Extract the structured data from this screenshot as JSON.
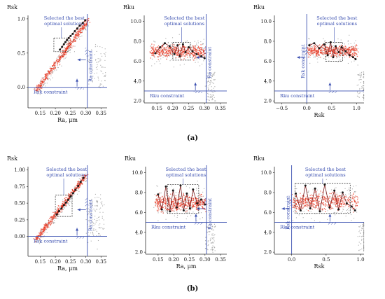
{
  "colors": {
    "all_points": "#8a8a8a",
    "pareto_points": "#e8331c",
    "optimal_points": "#1a1a1a",
    "optimal_line": "#7a1a1a",
    "constraint": "#3a4fb0",
    "annotation": "#3a4fb0",
    "text": "#111111",
    "box": "#222222"
  },
  "rows": [
    {
      "caption": "(a)"
    },
    {
      "caption": "(b)"
    }
  ],
  "chart_data": [
    {
      "row": "a",
      "panel": 1,
      "type": "scatter",
      "ylabel": "Rsk",
      "xlabel": "Ra, μm",
      "xlim": [
        0.11,
        0.37
      ],
      "ylim": [
        -0.3,
        1.05
      ],
      "xticks": [
        "0.15",
        "0.20",
        "0.25",
        "0.30",
        "0.35"
      ],
      "xtick_vals": [
        0.15,
        0.2,
        0.25,
        0.3,
        0.35
      ],
      "yticks": [
        "0.0",
        "0.5",
        "1.0"
      ],
      "ytick_vals": [
        0.0,
        0.5,
        1.0
      ],
      "hline": {
        "value": 0.0,
        "label": "Rsk constraint"
      },
      "vline": {
        "value": 0.305,
        "label": "Ra constraint"
      },
      "box": {
        "x": [
          0.195,
          0.245
        ],
        "y": [
          0.52,
          0.72
        ],
        "label": [
          "Selected the best",
          "optimal solutions"
        ]
      },
      "shape": "band",
      "band": {
        "x0": 0.135,
        "x1": 0.305,
        "y0": -0.02,
        "y1": 1.0
      },
      "optimal": [
        [
          0.215,
          0.55
        ],
        [
          0.222,
          0.59
        ],
        [
          0.228,
          0.63
        ],
        [
          0.233,
          0.66
        ],
        [
          0.238,
          0.69
        ],
        [
          0.244,
          0.72
        ],
        [
          0.25,
          0.75
        ],
        [
          0.257,
          0.78
        ],
        [
          0.264,
          0.82
        ],
        [
          0.272,
          0.86
        ],
        [
          0.28,
          0.9
        ],
        [
          0.29,
          0.94
        ],
        [
          0.298,
          0.98
        ]
      ]
    },
    {
      "row": "a",
      "panel": 2,
      "type": "scatter",
      "ylabel": "Rku",
      "xlabel": "",
      "xlim": [
        0.11,
        0.37
      ],
      "ylim": [
        1.8,
        10.6
      ],
      "xticks": [
        "0.15",
        "0.20",
        "0.25",
        "0.30",
        "0.35"
      ],
      "xtick_vals": [
        0.15,
        0.2,
        0.25,
        0.3,
        0.35
      ],
      "yticks": [
        "2.0",
        "4.0",
        "6.0",
        "8.0",
        "10.0"
      ],
      "ytick_vals": [
        2,
        4,
        6,
        8,
        10
      ],
      "hline": {
        "value": 3.0,
        "label": "Rku constraint"
      },
      "vline": {
        "value": 0.305,
        "label": "Ra constraint"
      },
      "box": {
        "x": [
          0.2,
          0.255
        ],
        "y": [
          6.1,
          7.9
        ],
        "label": [
          "Selected the best",
          "optimal solutions"
        ]
      },
      "shape": "cloud",
      "cloud": {
        "x0": 0.13,
        "x1": 0.3,
        "ymid": 7.0,
        "yspread": 1.3
      },
      "optimal": [
        [
          0.145,
          6.8
        ],
        [
          0.16,
          7.4
        ],
        [
          0.175,
          7.8
        ],
        [
          0.19,
          7.5
        ],
        [
          0.205,
          6.7
        ],
        [
          0.215,
          7.6
        ],
        [
          0.222,
          6.5
        ],
        [
          0.232,
          7.7
        ],
        [
          0.24,
          6.9
        ],
        [
          0.25,
          7.4
        ],
        [
          0.262,
          7.0
        ],
        [
          0.275,
          6.7
        ],
        [
          0.29,
          6.5
        ],
        [
          0.3,
          6.3
        ]
      ]
    },
    {
      "row": "a",
      "panel": 3,
      "type": "scatter",
      "ylabel": "Rku",
      "xlabel": "Rsk",
      "xlim": [
        -0.65,
        1.15
      ],
      "ylim": [
        1.8,
        10.6
      ],
      "xticks": [
        "−0.5",
        "0.0",
        "0.5",
        "1.0"
      ],
      "xtick_vals": [
        -0.5,
        0.0,
        0.5,
        1.0
      ],
      "yticks": [
        "2.0",
        "4.0",
        "6.0",
        "8.0",
        "10.0"
      ],
      "ytick_vals": [
        2,
        4,
        6,
        8,
        10
      ],
      "hline": {
        "value": 3.0,
        "label": "Rku constraint"
      },
      "vline": {
        "value": 0.0,
        "label": "Rsk constraint"
      },
      "box": {
        "x": [
          0.38,
          0.72
        ],
        "y": [
          6.0,
          7.9
        ],
        "label": [
          "Selected the best",
          "optimal solutions"
        ]
      },
      "shape": "cloud",
      "cloud": {
        "x0": 0.0,
        "x1": 1.0,
        "ymid": 7.1,
        "yspread": 1.2
      },
      "optimal": [
        [
          0.05,
          7.6
        ],
        [
          0.15,
          7.8
        ],
        [
          0.25,
          7.3
        ],
        [
          0.35,
          7.7
        ],
        [
          0.42,
          6.6
        ],
        [
          0.48,
          7.9
        ],
        [
          0.53,
          6.4
        ],
        [
          0.58,
          7.5
        ],
        [
          0.64,
          6.9
        ],
        [
          0.7,
          7.4
        ],
        [
          0.78,
          7.0
        ],
        [
          0.86,
          6.6
        ],
        [
          0.93,
          6.4
        ],
        [
          0.98,
          6.2
        ]
      ]
    },
    {
      "row": "b",
      "panel": 1,
      "type": "scatter",
      "ylabel": "Rsk",
      "xlabel": "Ra, μm",
      "xlim": [
        0.11,
        0.37
      ],
      "ylim": [
        -0.3,
        1.05
      ],
      "xticks": [
        "0.15",
        "0.20",
        "0.25",
        "0.30",
        "0.35"
      ],
      "xtick_vals": [
        0.15,
        0.2,
        0.25,
        0.3,
        0.35
      ],
      "yticks": [
        "0.00",
        "0.25",
        "0.50",
        "0.75",
        "1.00"
      ],
      "ytick_vals": [
        0.0,
        0.25,
        0.5,
        0.75,
        1.0
      ],
      "hline": {
        "value": 0.0,
        "label": "Rsk constraint"
      },
      "vline": {
        "value": 0.305,
        "label": "Ra constraint"
      },
      "box": {
        "x": [
          0.2,
          0.255
        ],
        "y": [
          0.3,
          0.62
        ],
        "label": [
          "Selected the best",
          "optimal solutions"
        ]
      },
      "shape": "band",
      "band": {
        "x0": 0.135,
        "x1": 0.3,
        "y0": -0.02,
        "y1": 0.95
      },
      "optimal": [
        [
          0.205,
          0.33
        ],
        [
          0.212,
          0.38
        ],
        [
          0.22,
          0.42
        ],
        [
          0.228,
          0.47
        ],
        [
          0.235,
          0.51
        ],
        [
          0.242,
          0.55
        ],
        [
          0.25,
          0.6
        ],
        [
          0.258,
          0.65
        ],
        [
          0.266,
          0.7
        ],
        [
          0.275,
          0.76
        ],
        [
          0.283,
          0.82
        ],
        [
          0.292,
          0.88
        ]
      ]
    },
    {
      "row": "b",
      "panel": 2,
      "type": "scatter",
      "ylabel": "Rku",
      "xlabel": "Ra, μm",
      "xlim": [
        0.11,
        0.37
      ],
      "ylim": [
        1.8,
        10.6
      ],
      "xticks": [
        "0.15",
        "0.20",
        "0.25",
        "0.30",
        "0.35"
      ],
      "xtick_vals": [
        0.15,
        0.2,
        0.25,
        0.3,
        0.35
      ],
      "yticks": [
        "2.0",
        "4.0",
        "6.0",
        "8.0",
        "10.0"
      ],
      "ytick_vals": [
        2,
        4,
        6,
        8,
        10
      ],
      "hline": {
        "value": 5.0,
        "label": "Rku constraint"
      },
      "vline": {
        "value": 0.305,
        "label": "Ra constraint"
      },
      "box": {
        "x": [
          0.18,
          0.28
        ],
        "y": [
          5.9,
          8.8
        ],
        "label": [
          "Selected the best",
          "optimal solutions"
        ]
      },
      "shape": "cloud",
      "cloud": {
        "x0": 0.14,
        "x1": 0.3,
        "ymid": 7.0,
        "yspread": 1.7
      },
      "optimal": [
        [
          0.15,
          7.8
        ],
        [
          0.162,
          6.3
        ],
        [
          0.175,
          8.6
        ],
        [
          0.188,
          6.1
        ],
        [
          0.198,
          8.2
        ],
        [
          0.21,
          6.5
        ],
        [
          0.222,
          8.7
        ],
        [
          0.232,
          6.2
        ],
        [
          0.242,
          7.9
        ],
        [
          0.252,
          6.4
        ],
        [
          0.262,
          8.3
        ],
        [
          0.275,
          6.9
        ],
        [
          0.288,
          7.3
        ],
        [
          0.3,
          6.8
        ]
      ]
    },
    {
      "row": "b",
      "panel": 3,
      "type": "scatter",
      "ylabel": "Rku",
      "xlabel": "Rsk",
      "xlim": [
        -0.25,
        1.05
      ],
      "ylim": [
        1.8,
        10.6
      ],
      "xticks": [
        "0.0",
        "0.5",
        "1.0"
      ],
      "xtick_vals": [
        0.0,
        0.5,
        1.0
      ],
      "yticks": [
        "2.0",
        "4.0",
        "6.0",
        "8.0",
        "10.0"
      ],
      "ytick_vals": [
        2,
        4,
        6,
        8,
        10
      ],
      "hline": {
        "value": 5.0,
        "label": "Rku constraint"
      },
      "vline": {
        "value": 0.0,
        "label": "Rsk constraint"
      },
      "box": {
        "x": [
          0.05,
          0.85
        ],
        "y": [
          5.9,
          8.9
        ],
        "label": [
          "Selected the best",
          "optimal solutions"
        ]
      },
      "shape": "cloud",
      "cloud": {
        "x0": 0.0,
        "x1": 0.95,
        "ymid": 7.1,
        "yspread": 1.7
      },
      "optimal": [
        [
          0.06,
          7.9
        ],
        [
          0.13,
          6.2
        ],
        [
          0.2,
          8.7
        ],
        [
          0.27,
          6.4
        ],
        [
          0.34,
          8.4
        ],
        [
          0.41,
          6.1
        ],
        [
          0.48,
          8.8
        ],
        [
          0.55,
          6.5
        ],
        [
          0.62,
          8.2
        ],
        [
          0.68,
          6.3
        ],
        [
          0.74,
          8.0
        ],
        [
          0.8,
          6.9
        ],
        [
          0.87,
          6.6
        ],
        [
          0.92,
          6.2
        ]
      ]
    }
  ]
}
